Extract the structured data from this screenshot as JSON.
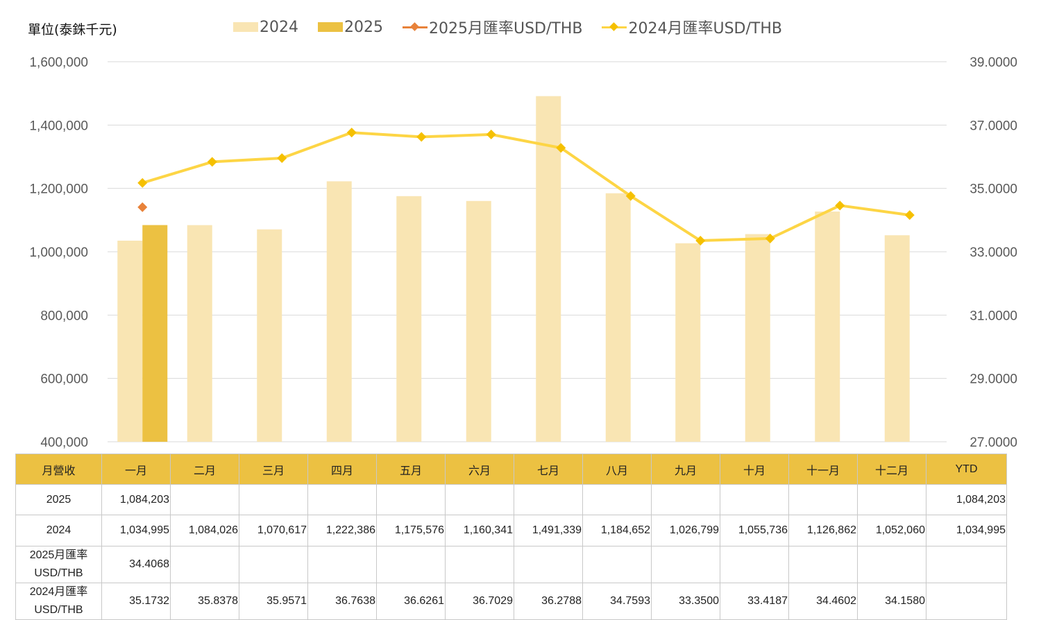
{
  "chart_data": {
    "type": "bar",
    "unit_label": "單位(泰銖千元)",
    "categories": [
      "一月",
      "二月",
      "三月",
      "四月",
      "五月",
      "六月",
      "七月",
      "八月",
      "九月",
      "十月",
      "十一月",
      "十二月"
    ],
    "series": [
      {
        "name": "2024",
        "kind": "bar",
        "color": "#f9e5b3",
        "values": [
          1034995,
          1084026,
          1070617,
          1222386,
          1175576,
          1160341,
          1491339,
          1184652,
          1026799,
          1055736,
          1126862,
          1052060
        ]
      },
      {
        "name": "2025",
        "kind": "bar",
        "color": "#ecc142",
        "values": [
          1084203,
          null,
          null,
          null,
          null,
          null,
          null,
          null,
          null,
          null,
          null,
          null
        ]
      },
      {
        "name": "2025月匯率USD/THB",
        "kind": "line",
        "axis": "right",
        "color": "#e8823a",
        "values": [
          34.4068,
          null,
          null,
          null,
          null,
          null,
          null,
          null,
          null,
          null,
          null,
          null
        ]
      },
      {
        "name": "2024月匯率USD/THB",
        "kind": "line",
        "axis": "right",
        "color": "#fdd545",
        "marker_color": "#f5c000",
        "values": [
          35.1732,
          35.8378,
          35.9571,
          36.7638,
          36.6261,
          36.7029,
          36.2788,
          34.7593,
          33.35,
          33.4187,
          34.4602,
          34.158
        ]
      }
    ],
    "y_left": {
      "min": 400000,
      "max": 1600000,
      "ticks": [
        "400,000",
        "600,000",
        "800,000",
        "1,000,000",
        "1,200,000",
        "1,400,000",
        "1,600,000"
      ]
    },
    "y_right": {
      "min": 27,
      "max": 39,
      "ticks": [
        "27.0000",
        "29.0000",
        "31.0000",
        "33.0000",
        "35.0000",
        "37.0000",
        "39.0000"
      ]
    },
    "legend_position": "top",
    "grid": true
  },
  "table": {
    "headers": [
      "月營收",
      "一月",
      "二月",
      "三月",
      "四月",
      "五月",
      "六月",
      "七月",
      "八月",
      "九月",
      "十月",
      "十一月",
      "十二月",
      "YTD"
    ],
    "rows": [
      {
        "label": "2025",
        "cells": [
          "1,084,203",
          "",
          "",
          "",
          "",
          "",
          "",
          "",
          "",
          "",
          "",
          "",
          "1,084,203"
        ]
      },
      {
        "label": "2024",
        "cells": [
          "1,034,995",
          "1,084,026",
          "1,070,617",
          "1,222,386",
          "1,175,576",
          "1,160,341",
          "1,491,339",
          "1,184,652",
          "1,026,799",
          "1,055,736",
          "1,126,862",
          "1,052,060",
          "1,034,995"
        ]
      },
      {
        "label_line1": "2025月匯率",
        "label_line2": "USD/THB",
        "cells": [
          "34.4068",
          "",
          "",
          "",
          "",
          "",
          "",
          "",
          "",
          "",
          "",
          "",
          ""
        ]
      },
      {
        "label_line1": "2024月匯率",
        "label_line2": "USD/THB",
        "cells": [
          "35.1732",
          "35.8378",
          "35.9571",
          "36.7638",
          "36.6261",
          "36.7029",
          "36.2788",
          "34.7593",
          "33.3500",
          "33.4187",
          "34.4602",
          "34.1580",
          ""
        ]
      }
    ]
  }
}
